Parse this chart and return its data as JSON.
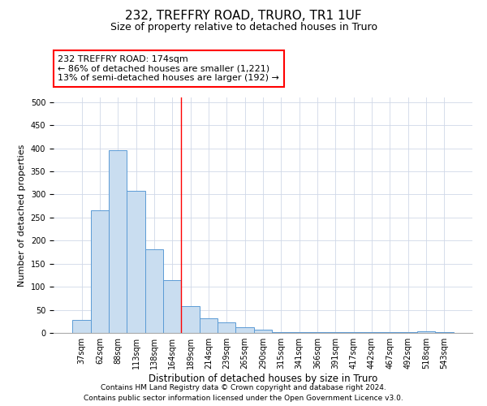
{
  "title1": "232, TREFFRY ROAD, TRURO, TR1 1UF",
  "title2": "Size of property relative to detached houses in Truro",
  "xlabel": "Distribution of detached houses by size in Truro",
  "ylabel": "Number of detached properties",
  "categories": [
    "37sqm",
    "62sqm",
    "88sqm",
    "113sqm",
    "138sqm",
    "164sqm",
    "189sqm",
    "214sqm",
    "239sqm",
    "265sqm",
    "290sqm",
    "315sqm",
    "341sqm",
    "366sqm",
    "391sqm",
    "417sqm",
    "442sqm",
    "467sqm",
    "492sqm",
    "518sqm",
    "543sqm"
  ],
  "values": [
    28,
    265,
    395,
    307,
    182,
    115,
    58,
    32,
    23,
    13,
    7,
    2,
    1,
    1,
    1,
    1,
    1,
    1,
    1,
    4,
    1
  ],
  "bar_color": "#c9ddf0",
  "bar_edge_color": "#5b9bd5",
  "vline_x_index": 5.5,
  "vline_color": "red",
  "annotation_text": "232 TREFFRY ROAD: 174sqm\n← 86% of detached houses are smaller (1,221)\n13% of semi-detached houses are larger (192) →",
  "annotation_box_color": "white",
  "annotation_box_edge_color": "red",
  "ylim": [
    0,
    510
  ],
  "yticks": [
    0,
    50,
    100,
    150,
    200,
    250,
    300,
    350,
    400,
    450,
    500
  ],
  "footer1": "Contains HM Land Registry data © Crown copyright and database right 2024.",
  "footer2": "Contains public sector information licensed under the Open Government Licence v3.0.",
  "title1_fontsize": 11,
  "title2_fontsize": 9,
  "tick_fontsize": 7,
  "ylabel_fontsize": 8,
  "xlabel_fontsize": 8.5,
  "annotation_fontsize": 8,
  "footer_fontsize": 6.5
}
